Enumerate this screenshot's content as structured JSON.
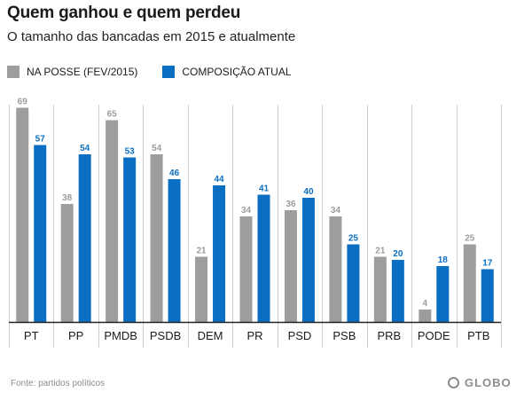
{
  "header": {
    "title": "Quem ganhou e quem perdeu",
    "subtitle": "O tamanho das bancadas em 2015 e atualmente"
  },
  "colors": {
    "series_1": "#9d9d9d",
    "series_2": "#0a6fc2",
    "grid": "#cfcfcf",
    "baseline": "#222222"
  },
  "chart_data": {
    "type": "bar",
    "title": "Quem ganhou e quem perdeu",
    "subtitle": "O tamanho das bancadas em 2015 e atualmente",
    "categories": [
      "PT",
      "PP",
      "PMDB",
      "PSDB",
      "DEM",
      "PR",
      "PSD",
      "PSB",
      "PRB",
      "PODE",
      "PTB"
    ],
    "series": [
      {
        "name": "NA POSSE (FEV/2015)",
        "color": "#9d9d9d",
        "values": [
          69,
          38,
          65,
          54,
          21,
          34,
          36,
          34,
          21,
          4,
          25
        ]
      },
      {
        "name": "COMPOSIÇÃO ATUAL",
        "color": "#0a6fc2",
        "values": [
          57,
          54,
          53,
          46,
          44,
          41,
          40,
          25,
          20,
          18,
          17
        ]
      }
    ],
    "ylim": [
      0,
      70
    ],
    "grid": false,
    "data_labels": true,
    "legend_position": "top-left",
    "xlabel": "",
    "ylabel": ""
  },
  "footer": {
    "source": "Fonte: partidos políticos",
    "logo_text": "GLOBO"
  }
}
